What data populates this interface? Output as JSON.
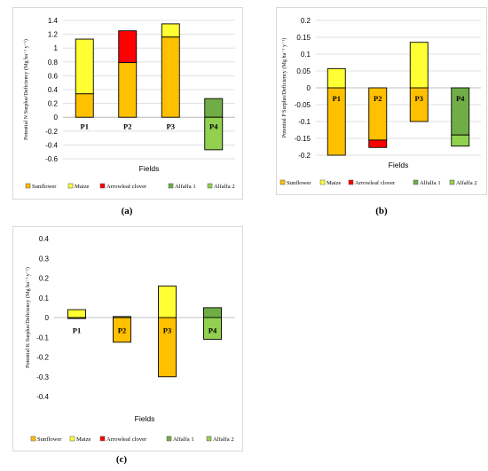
{
  "legend_colors": {
    "Sunflower": "#FFC000",
    "Maize": "#FFFF33",
    "Arrowleaf clover": "#FF0000",
    "Alfalfa 1": "#70AD47",
    "Alfalfa 2": "#92D050"
  },
  "captions": [
    "(a)",
    "(b)",
    "(c)"
  ],
  "chart_data": [
    {
      "id": "a",
      "type": "bar",
      "stacked": true,
      "xlabel": "Fields",
      "ylabel": "Potential N Surplus/Deficiency (Mg ha⁻¹ y⁻¹)",
      "ylim": [
        -0.6,
        1.4
      ],
      "yticks": [
        -0.6,
        -0.4,
        -0.2,
        0,
        0.2,
        0.4,
        0.6,
        0.8,
        1,
        1.2,
        1.4
      ],
      "ytick_labels": [
        "-0.6",
        "-0.4",
        "-0.2",
        "0",
        "0.2",
        "0.4",
        "0.6",
        "0.8",
        "1",
        "1.2",
        "1.4"
      ],
      "grid": true,
      "categories": [
        "P1",
        "P2",
        "P3",
        "P4"
      ],
      "label_y": -0.13,
      "series": [
        {
          "name": "Sunflower",
          "values": [
            0.34,
            0.79,
            1.16,
            0
          ]
        },
        {
          "name": "Maize",
          "values": [
            0.79,
            0,
            0.19,
            0
          ]
        },
        {
          "name": "Arrowleaf clover",
          "values": [
            0,
            0.46,
            0,
            0
          ]
        },
        {
          "name": "Alfalfa 1",
          "values": [
            0,
            0,
            0,
            0.27
          ]
        },
        {
          "name": "Alfalfa 2",
          "values": [
            0,
            0,
            0,
            -0.47
          ]
        }
      ],
      "legend": [
        "Sunflower",
        "Maize",
        "Arrowleaf clover",
        "Alfalfa 1",
        "Alfalfa 2"
      ]
    },
    {
      "id": "b",
      "type": "bar",
      "stacked": true,
      "xlabel": "Fields",
      "ylabel": "Potential P Surplus/Deficiency (Mg ha⁻¹ y⁻¹)",
      "ylim": [
        -0.2,
        0.2
      ],
      "yticks": [
        -0.2,
        -0.15,
        -0.1,
        -0.05,
        0,
        0.05,
        0.1,
        0.15,
        0.2
      ],
      "ytick_labels": [
        "-0.2",
        "-0.15",
        "-0.1",
        "-0.05",
        "0",
        "0.05",
        "0.1",
        "0.15",
        "0.2"
      ],
      "grid": true,
      "categories": [
        "P1",
        "P2",
        "P3",
        "P4"
      ],
      "label_y": -0.032,
      "series": [
        {
          "name": "Sunflower",
          "values": [
            -0.2,
            -0.155,
            -0.1,
            0
          ]
        },
        {
          "name": "Maize",
          "values": [
            0.057,
            0,
            0.135,
            0
          ]
        },
        {
          "name": "Arrowleaf clover",
          "values": [
            0,
            -0.022,
            0,
            0
          ]
        },
        {
          "name": "Alfalfa 1",
          "values": [
            0,
            0,
            0,
            -0.14
          ]
        },
        {
          "name": "Alfalfa 2",
          "values": [
            0,
            0,
            0,
            -0.033
          ]
        }
      ],
      "legend": [
        "Sunflower",
        "Maize",
        "Arrowleaf clover",
        "Alfalfa 1",
        "Alfalfa 2"
      ]
    },
    {
      "id": "c",
      "type": "bar",
      "stacked": true,
      "xlabel": "Fields",
      "ylabel": "Potential K Surplus/Deficiency (Mg ha⁻¹ y⁻¹)",
      "ylim": [
        -0.4,
        0.4
      ],
      "yticks": [
        -0.4,
        -0.3,
        -0.2,
        -0.1,
        0,
        0.1,
        0.2,
        0.3,
        0.4
      ],
      "ytick_labels": [
        "-0.4",
        "-0.3",
        "-0.2",
        "-0.1",
        "0",
        "0.1",
        "0.2",
        "0.3",
        "0.4"
      ],
      "grid": false,
      "categories": [
        "P1",
        "P2",
        "P3",
        "P4"
      ],
      "label_y": -0.065,
      "series": [
        {
          "name": "Sunflower",
          "values": [
            -0.005,
            -0.125,
            -0.3,
            0
          ]
        },
        {
          "name": "Maize",
          "values": [
            0.04,
            0.005,
            0.16,
            0
          ]
        },
        {
          "name": "Arrowleaf clover",
          "values": [
            0,
            0,
            0,
            0
          ]
        },
        {
          "name": "Alfalfa 1",
          "values": [
            0,
            0,
            0,
            0.05
          ]
        },
        {
          "name": "Alfalfa 2",
          "values": [
            0,
            0,
            0,
            -0.11
          ]
        }
      ],
      "legend": [
        "Sunflower",
        "Maize",
        "Arrowleaf clover",
        "Alfalfa 1",
        "Alfalfa 2"
      ]
    }
  ]
}
